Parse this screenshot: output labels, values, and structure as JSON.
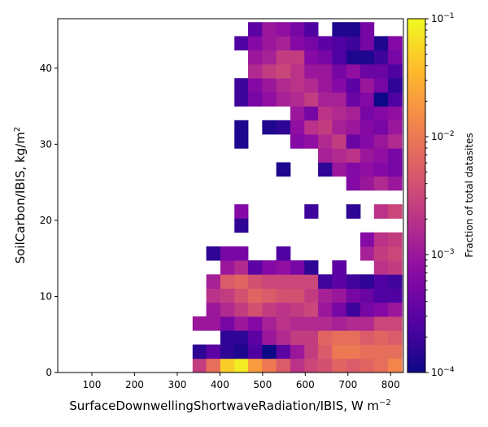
{
  "chart_data": {
    "type": "heatmap",
    "xlabel": "SurfaceDownwellingShortwaveRadiation/IBIS,  W m",
    "xlabel_sup": "−2",
    "ylabel": "SoilCarbon/IBIS,  kg/m",
    "ylabel_sup": "2",
    "colorbar_label": "Fraction of total datasites",
    "colorscale": "plasma",
    "log_color": true,
    "clim": [
      0.0001,
      0.1
    ],
    "xlim": [
      20,
      830
    ],
    "ylim": [
      0,
      46.5
    ],
    "x_ticks": [
      100,
      200,
      300,
      400,
      500,
      600,
      700,
      800
    ],
    "y_ticks": [
      0,
      10,
      20,
      30,
      40
    ],
    "colorbar_ticks": [
      {
        "value": 0.1,
        "base": "10",
        "exp": "−1"
      },
      {
        "value": 0.01,
        "base": "10",
        "exp": "−2"
      },
      {
        "value": 0.001,
        "base": "10",
        "exp": "−3"
      },
      {
        "value": 0.0001,
        "base": "10",
        "exp": "−4"
      }
    ],
    "x_bin_edges": [
      336,
      368,
      401,
      434,
      466,
      499,
      532,
      565,
      598,
      630,
      663,
      696,
      729,
      761,
      794,
      827
    ],
    "y_bin_edges": [
      0,
      1.84,
      3.68,
      5.53,
      7.37,
      9.21,
      11.05,
      12.9,
      14.74,
      16.58,
      18.42,
      20.26,
      22.11,
      23.95,
      25.79,
      27.63,
      29.47,
      31.32,
      33.16,
      35.0,
      36.84,
      38.68,
      40.53,
      42.37,
      44.21,
      46.05
    ],
    "log10_values": [
      [
        -2.6,
        -2.1,
        -1.3,
        -1.1,
        -1.7,
        -2.0,
        -2.3,
        -2.7,
        -2.5,
        -2.4,
        -2.2,
        -2.3,
        -2.2,
        -2.1,
        -1.9
      ],
      [
        -3.8,
        -3.5,
        -3.8,
        -3.9,
        -3.6,
        -4.0,
        -3.5,
        -3.0,
        -2.6,
        -2.3,
        -2.0,
        -2.0,
        -2.1,
        -2.1,
        -2.1
      ],
      [
        null,
        null,
        -3.8,
        -3.8,
        -3.5,
        -3.0,
        -2.8,
        -2.6,
        -2.6,
        -2.2,
        -2.1,
        -2.1,
        -2.3,
        -2.2,
        -2.3
      ],
      [
        -3.0,
        -3.0,
        -3.3,
        -3.0,
        -3.2,
        -2.9,
        -2.7,
        -2.8,
        -2.8,
        -2.8,
        -2.9,
        -2.8,
        -2.8,
        -2.5,
        -2.5
      ],
      [
        null,
        -3.0,
        -2.8,
        -2.6,
        -2.4,
        -2.6,
        -2.7,
        -2.6,
        -2.5,
        -3.0,
        -3.3,
        -3.7,
        -3.3,
        -3.2,
        -3.0
      ],
      [
        null,
        -2.7,
        -2.6,
        -2.4,
        -2.2,
        -2.3,
        -2.4,
        -2.4,
        -2.6,
        -2.9,
        -3.0,
        -3.3,
        -3.4,
        -3.6,
        -3.6
      ],
      [
        null,
        -2.9,
        -2.3,
        -2.2,
        -2.4,
        -2.5,
        -2.5,
        -2.5,
        -2.5,
        -3.7,
        -3.5,
        -3.7,
        -3.8,
        -3.6,
        -3.7
      ],
      [
        null,
        null,
        -3.0,
        -2.8,
        -3.5,
        -3.2,
        -3.1,
        -3.3,
        -3.8,
        null,
        -3.5,
        null,
        null,
        -2.7,
        -2.6
      ],
      [
        null,
        -3.8,
        -3.3,
        -3.3,
        null,
        null,
        -3.6,
        null,
        null,
        null,
        null,
        null,
        -2.9,
        -2.6,
        -2.5
      ],
      [
        null,
        null,
        null,
        null,
        null,
        null,
        null,
        null,
        null,
        null,
        null,
        null,
        -3.2,
        -2.7,
        -2.6
      ],
      [
        null,
        null,
        null,
        -3.8,
        null,
        null,
        null,
        null,
        null,
        null,
        null,
        null,
        null,
        null,
        null
      ],
      [
        null,
        null,
        null,
        -3.2,
        null,
        null,
        null,
        null,
        -3.7,
        null,
        null,
        -3.8,
        null,
        -2.7,
        -2.5
      ],
      [
        null,
        null,
        null,
        null,
        null,
        null,
        null,
        null,
        null,
        null,
        null,
        null,
        null,
        null,
        null
      ],
      [
        null,
        null,
        null,
        null,
        null,
        null,
        null,
        null,
        null,
        null,
        null,
        -3.2,
        -3.0,
        -2.8,
        -3.0
      ],
      [
        null,
        null,
        null,
        null,
        null,
        null,
        -3.9,
        null,
        null,
        -3.8,
        -3.0,
        -3.2,
        -3.1,
        -3.2,
        -3.3
      ],
      [
        null,
        null,
        null,
        null,
        null,
        null,
        null,
        null,
        null,
        -2.9,
        -2.8,
        -2.7,
        -3.0,
        -3.1,
        -3.3
      ],
      [
        null,
        null,
        null,
        -3.9,
        null,
        null,
        null,
        -3.2,
        -3.1,
        -2.8,
        -2.6,
        -3.4,
        -3.2,
        -3.0,
        -2.8
      ],
      [
        null,
        null,
        null,
        -3.9,
        null,
        -3.9,
        -3.8,
        -3.1,
        -2.7,
        -2.6,
        -2.9,
        -3.0,
        -3.2,
        -3.3,
        -3.0
      ],
      [
        null,
        null,
        null,
        null,
        null,
        null,
        null,
        -3.0,
        -3.3,
        -2.7,
        -2.8,
        -2.9,
        -3.3,
        -3.2,
        -3.1
      ],
      [
        null,
        null,
        null,
        -3.7,
        -3.3,
        -3.1,
        -2.9,
        -2.8,
        -2.6,
        -2.9,
        -2.9,
        -3.4,
        -3.2,
        -4.0,
        -3.6
      ],
      [
        null,
        null,
        null,
        -3.7,
        -3.2,
        -3.0,
        -2.8,
        -2.7,
        -2.8,
        -3.0,
        -3.2,
        -3.5,
        -3.0,
        -3.3,
        -3.8
      ],
      [
        null,
        null,
        null,
        null,
        -2.8,
        -2.6,
        -2.5,
        -2.7,
        -3.0,
        -3.0,
        -3.3,
        -3.1,
        -3.4,
        -3.4,
        -3.6
      ],
      [
        null,
        null,
        null,
        null,
        -3.0,
        -2.9,
        -2.6,
        -2.6,
        -3.2,
        -3.3,
        -3.6,
        -3.9,
        -3.9,
        -3.7,
        -3.3
      ],
      [
        null,
        null,
        null,
        -3.6,
        -3.2,
        -3.0,
        -2.9,
        -3.2,
        -3.3,
        -3.5,
        -3.6,
        -3.7,
        -3.3,
        -3.9,
        -3.2
      ],
      [
        null,
        null,
        null,
        null,
        -3.5,
        -3.0,
        -3.1,
        -3.3,
        -3.6,
        null,
        -3.9,
        -3.9,
        -3.3,
        null,
        null
      ]
    ]
  }
}
